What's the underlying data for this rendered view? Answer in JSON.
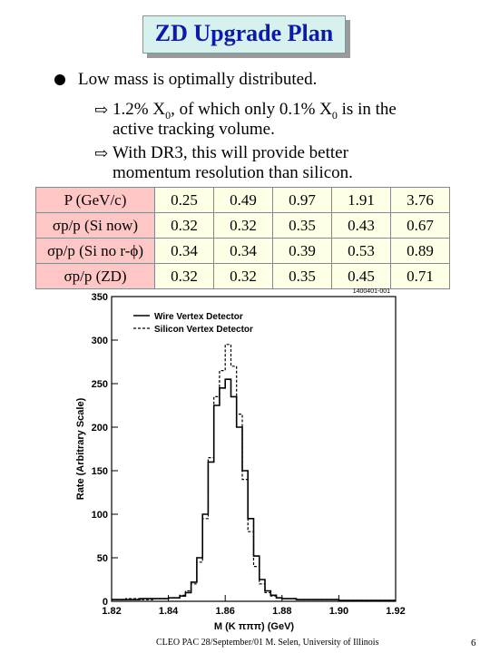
{
  "title": "ZD Upgrade Plan",
  "bullets": {
    "main": "Low mass is optimally distributed.",
    "sub1_line1_a": "1.2% X",
    "sub1_line1_sub": "0",
    "sub1_line1_b": ", of which only 0.1% X",
    "sub1_line1_sub2": "0",
    "sub1_line1_c": " is in the",
    "sub1_line2": "active tracking volume.",
    "sub2_line1": "With DR3, this will provide better",
    "sub2_line2": "momentum resolution than silicon."
  },
  "table": {
    "rows": [
      {
        "label": "P (GeV/c)",
        "values": [
          "0.25",
          "0.49",
          "0.97",
          "1.91",
          "3.76"
        ]
      },
      {
        "label": "σp/p (Si now)",
        "values": [
          "0.32",
          "0.32",
          "0.35",
          "0.43",
          "0.67"
        ]
      },
      {
        "label": "σp/p (Si no r-ϕ)",
        "values": [
          "0.34",
          "0.34",
          "0.39",
          "0.53",
          "0.89"
        ]
      },
      {
        "label": "σp/p (ZD)",
        "values": [
          "0.32",
          "0.32",
          "0.35",
          "0.45",
          "0.71"
        ]
      }
    ]
  },
  "chart_data": {
    "type": "line",
    "tag": "1400401-001",
    "xlabel": "M (K πππ) (GeV)",
    "ylabel": "Rate (Arbitrary Scale)",
    "xlim": [
      1.82,
      1.92
    ],
    "ylim": [
      0,
      350
    ],
    "xticks": [
      "1.82",
      "1.84",
      "1.86",
      "1.88",
      "1.90",
      "1.92"
    ],
    "yticks": [
      "0",
      "50",
      "100",
      "150",
      "200",
      "250",
      "300",
      "350"
    ],
    "legend": [
      "Wire Vertex Detector",
      "Silicon Vertex Detector"
    ],
    "x": [
      1.82,
      1.825,
      1.83,
      1.835,
      1.84,
      1.844,
      1.846,
      1.848,
      1.85,
      1.852,
      1.854,
      1.856,
      1.858,
      1.86,
      1.862,
      1.864,
      1.866,
      1.868,
      1.87,
      1.872,
      1.874,
      1.876,
      1.878,
      1.88,
      1.885,
      1.89,
      1.9,
      1.91,
      1.92
    ],
    "series": [
      {
        "name": "Wire Vertex Detector",
        "values": [
          2,
          2,
          3,
          3,
          4,
          6,
          10,
          22,
          50,
          100,
          160,
          225,
          245,
          255,
          235,
          200,
          150,
          95,
          52,
          25,
          12,
          7,
          4,
          3,
          2,
          2,
          1,
          1,
          1
        ]
      },
      {
        "name": "Silicon Vertex Detector",
        "values": [
          2,
          3,
          2,
          3,
          4,
          7,
          12,
          20,
          45,
          95,
          165,
          235,
          265,
          295,
          270,
          215,
          140,
          80,
          40,
          20,
          10,
          6,
          4,
          3,
          2,
          2,
          1,
          1,
          1
        ]
      }
    ]
  },
  "footer": "CLEO PAC 28/September/01 M. Selen, University of Illinois",
  "page_number": "6"
}
